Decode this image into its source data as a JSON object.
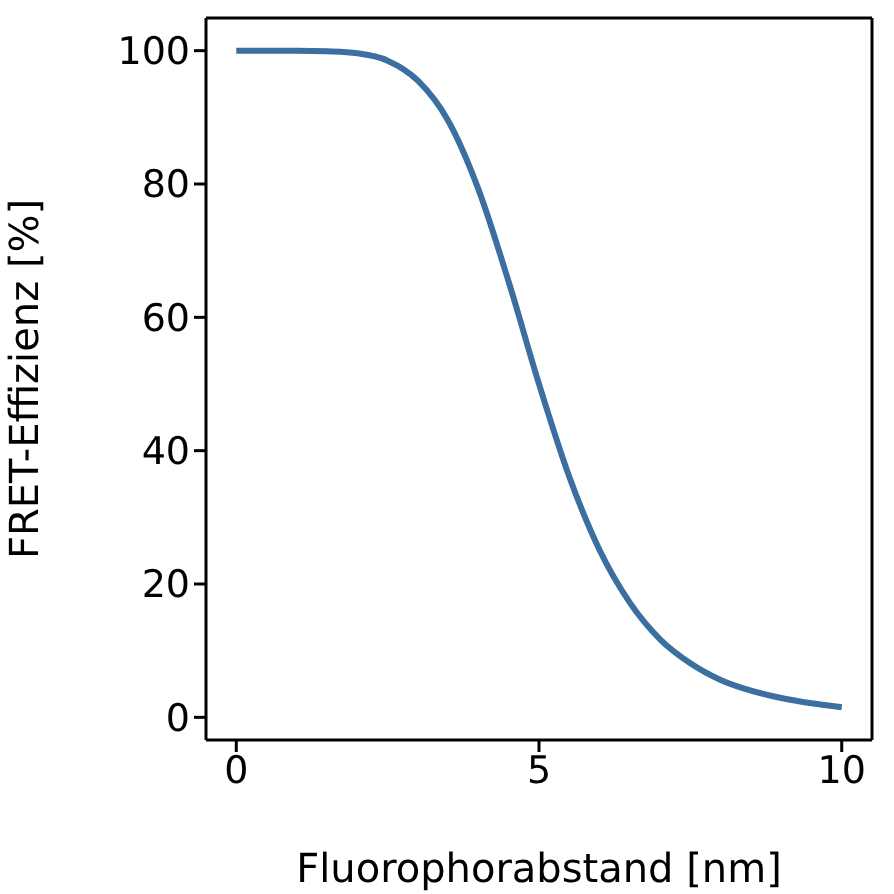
{
  "chart_data": {
    "type": "line",
    "xlabel": "Fluorophorabstand [nm]",
    "ylabel": "FRET-Effizienz [%]",
    "x": [
      0,
      0.5,
      1,
      1.5,
      2,
      2.5,
      3,
      3.5,
      4,
      4.5,
      5,
      5.5,
      6,
      6.5,
      7,
      7.5,
      8,
      8.5,
      9,
      9.5,
      10
    ],
    "series": [
      {
        "color": "#3a6f9f",
        "values": [
          100,
          100,
          100,
          99.9,
          99.6,
          98.5,
          95.5,
          89.5,
          79.2,
          65.3,
          50,
          36.1,
          25.1,
          17.2,
          11.7,
          8.1,
          5.6,
          4,
          2.9,
          2.1,
          1.5
        ]
      }
    ],
    "xlim": [
      -0.5,
      10.5
    ],
    "xticks": [
      0,
      5,
      10
    ],
    "ylim": [
      -3.4,
      104.9
    ],
    "yticks": [
      0,
      20,
      40,
      60,
      80,
      100
    ],
    "grid": false,
    "legend": false,
    "marker": "none",
    "line_style": "solid"
  }
}
